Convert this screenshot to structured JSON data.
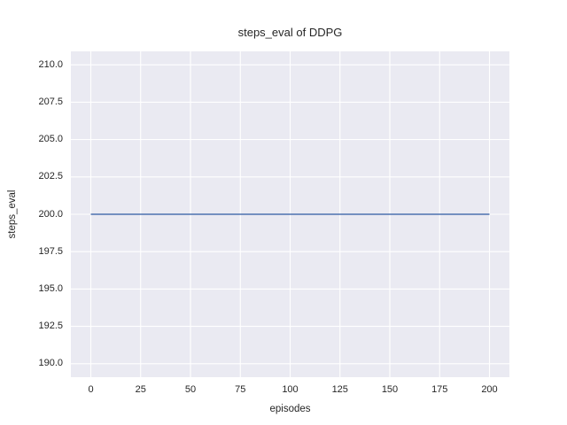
{
  "style": {
    "figure_background": "#ffffff",
    "plot_background": "#eaeaf2",
    "grid_color": "#ffffff",
    "text_color": "#262626",
    "line_color": "#4c72b0"
  },
  "chart_data": {
    "type": "line",
    "title": "steps_eval of DDPG",
    "xlabel": "episodes",
    "ylabel": "steps_eval",
    "x_tick_labels": [
      "0",
      "25",
      "50",
      "75",
      "100",
      "125",
      "150",
      "175",
      "200"
    ],
    "y_tick_labels": [
      "190.0",
      "192.5",
      "195.0",
      "197.5",
      "200.0",
      "202.5",
      "205.0",
      "207.5",
      "210.0"
    ],
    "xlim": [
      -10,
      210
    ],
    "ylim": [
      189.1,
      210.9
    ],
    "grid": true,
    "legend": null,
    "series": [
      {
        "name": "DDPG",
        "color": "#4c72b0",
        "x": [
          0,
          200
        ],
        "y": [
          200,
          200
        ]
      }
    ]
  }
}
